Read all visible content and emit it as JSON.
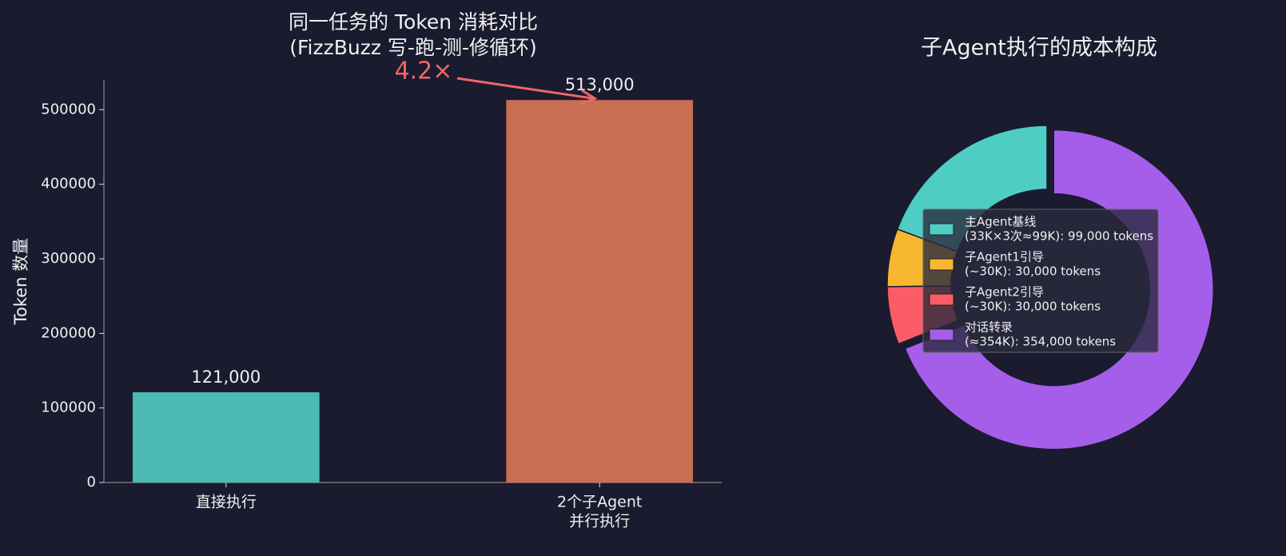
{
  "chart_data": [
    {
      "type": "bar",
      "title": [
        "同一任务的 Token 消耗对比",
        "(FizzBuzz 写-跑-测-修循环)"
      ],
      "ylabel": "Token 数量",
      "categories": [
        [
          "直接执行"
        ],
        [
          "2个子Agent",
          "并行执行"
        ]
      ],
      "values": [
        121000,
        513000
      ],
      "value_labels": [
        "121,000",
        "513,000"
      ],
      "colors": [
        "#4bbab3",
        "#c96d53"
      ],
      "ylim": [
        0,
        540000
      ],
      "yticks": [
        0,
        100000,
        200000,
        300000,
        400000,
        500000
      ],
      "annotation": {
        "text": "4.2×",
        "color": "#f06767"
      }
    },
    {
      "type": "donut",
      "title": "子Agent执行的成本构成",
      "slices": [
        {
          "name": [
            "主Agent基线",
            "(33K×3次≈99K): 99,000 tokens"
          ],
          "color": "#4ecdc4",
          "value": 99000,
          "exploded": false
        },
        {
          "name": [
            "子Agent1引导",
            "(~30K): 30,000 tokens"
          ],
          "color": "#f7b731",
          "value": 30000,
          "exploded": false
        },
        {
          "name": [
            "子Agent2引导",
            "(~30K): 30,000 tokens"
          ],
          "color": "#fc5c65",
          "value": 30000,
          "exploded": false
        },
        {
          "name": [
            "对话转录",
            "(≈354K): 354,000 tokens"
          ],
          "color": "#a55eea",
          "value": 354000,
          "exploded": true
        }
      ]
    }
  ]
}
